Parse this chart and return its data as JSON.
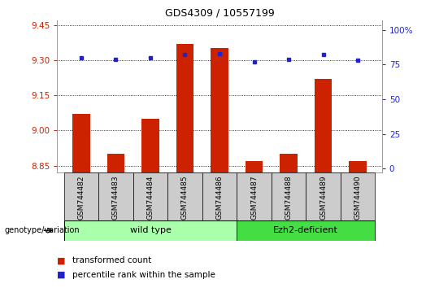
{
  "title": "GDS4309 / 10557199",
  "samples": [
    "GSM744482",
    "GSM744483",
    "GSM744484",
    "GSM744485",
    "GSM744486",
    "GSM744487",
    "GSM744488",
    "GSM744489",
    "GSM744490"
  ],
  "red_values": [
    9.07,
    8.9,
    9.05,
    9.37,
    9.35,
    8.87,
    8.9,
    9.22,
    8.87
  ],
  "blue_values": [
    80,
    79,
    80,
    82,
    83,
    77,
    79,
    82,
    78
  ],
  "ylim_left": [
    8.82,
    9.47
  ],
  "ylim_right": [
    -3,
    107
  ],
  "yticks_left": [
    8.85,
    9.0,
    9.15,
    9.3,
    9.45
  ],
  "yticks_right": [
    0,
    25,
    50,
    75,
    100
  ],
  "ytick_labels_right": [
    "0",
    "25",
    "50",
    "75",
    "100%"
  ],
  "groups": [
    {
      "label": "wild type",
      "start": 0,
      "end": 4,
      "color": "#AAFFAA"
    },
    {
      "label": "Ezh2-deficient",
      "start": 5,
      "end": 8,
      "color": "#44DD44"
    }
  ],
  "group_label": "genotype/variation",
  "legend_red": "transformed count",
  "legend_blue": "percentile rank within the sample",
  "bar_color": "#CC2200",
  "dot_color": "#2222CC",
  "bar_width": 0.5,
  "tick_color_left": "#CC2200",
  "tick_color_right": "#2222CC",
  "sample_box_color": "#CCCCCC",
  "title_fontsize": 9,
  "tick_fontsize": 7.5,
  "label_fontsize": 6.5,
  "legend_fontsize": 7.5
}
